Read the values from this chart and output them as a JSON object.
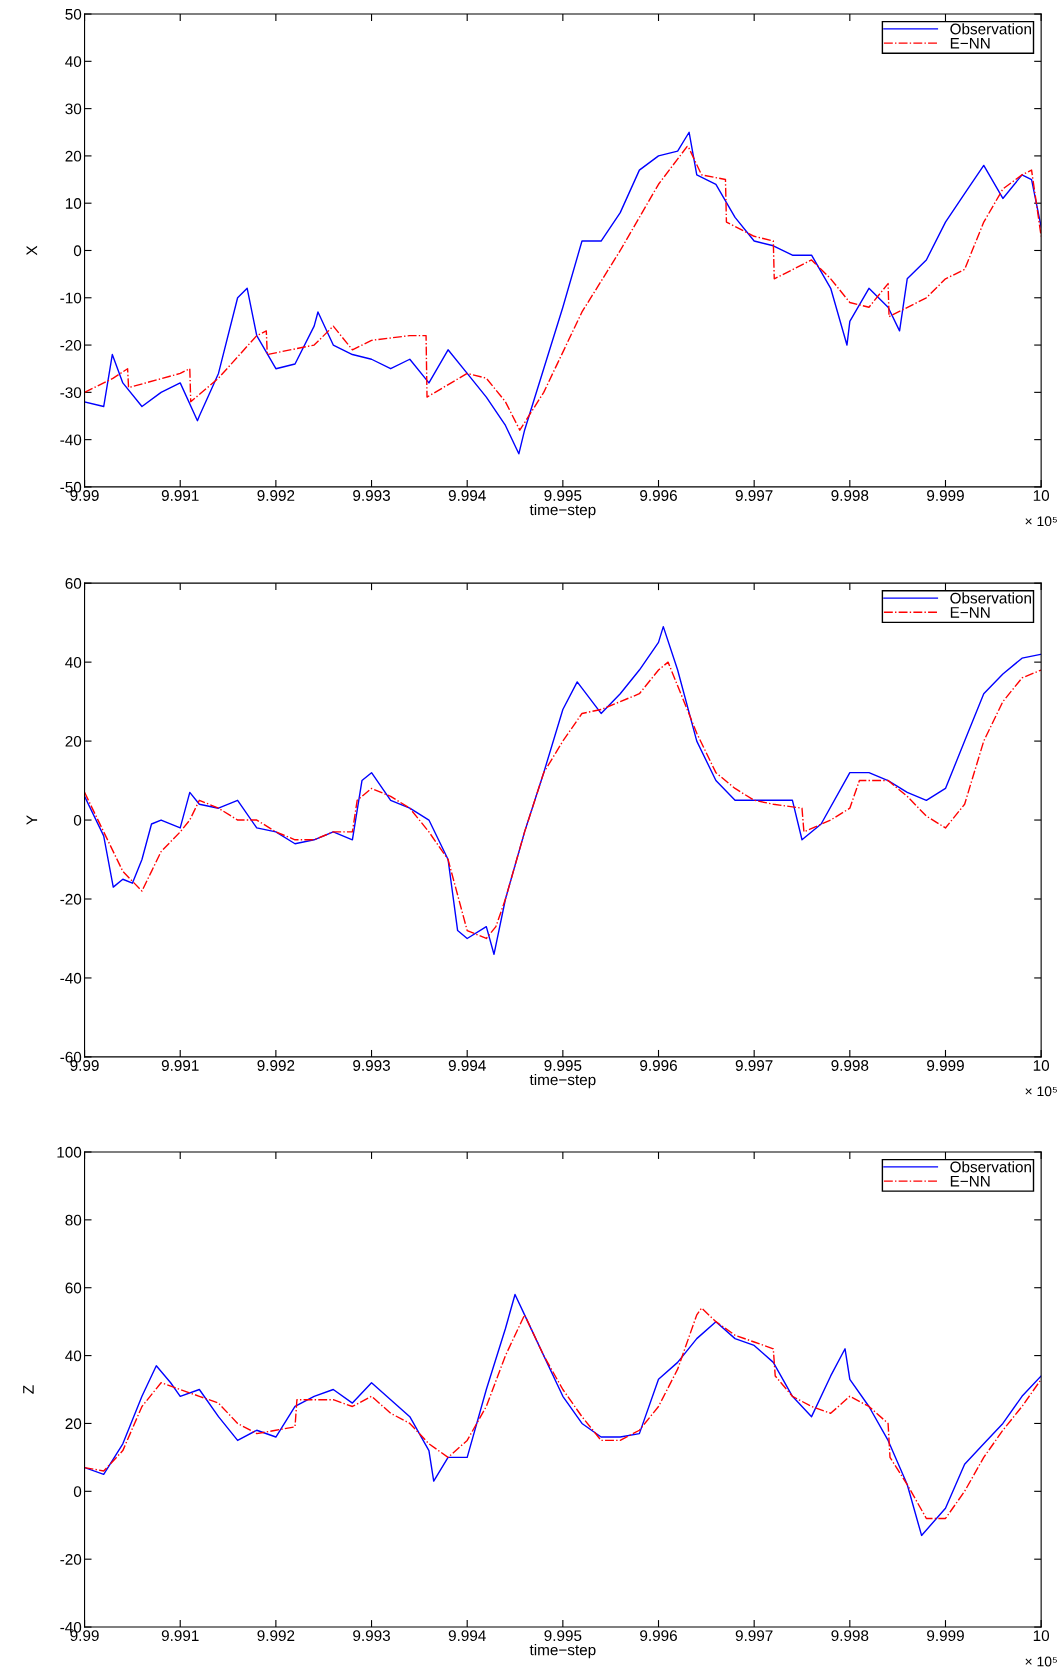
{
  "chart_data": [
    {
      "type": "line",
      "xlabel": "time−step",
      "ylabel": "X",
      "xlim": [
        9.99,
        10
      ],
      "xticks": [
        9.99,
        9.991,
        9.992,
        9.993,
        9.994,
        9.995,
        9.996,
        9.997,
        9.998,
        9.999,
        10
      ],
      "ylim": [
        -50,
        50
      ],
      "yticks": [
        -50,
        -40,
        -30,
        -20,
        -10,
        0,
        10,
        20,
        30,
        40,
        50
      ],
      "grid": false,
      "legend": "top right",
      "annotations": [
        "× 10⁵"
      ],
      "series": [
        {
          "name": "Observation",
          "color": "#0000ff",
          "line_style": "solid",
          "x": [
            9.99,
            9.9902,
            9.99029,
            9.9904,
            9.9906,
            9.9908,
            9.991,
            9.99118,
            9.9912,
            9.9914,
            9.9916,
            9.9917,
            9.9918,
            9.992,
            9.9922,
            9.9924,
            9.99244,
            9.9926,
            9.9928,
            9.993,
            9.9932,
            9.9934,
            9.9936,
            9.9938,
            9.994,
            9.9942,
            9.9944,
            9.99454,
            9.9946,
            9.9948,
            9.995,
            9.9952,
            9.9954,
            9.9956,
            9.9958,
            9.996,
            9.9962,
            9.99632,
            9.9964,
            9.9966,
            9.9968,
            9.997,
            9.9972,
            9.9974,
            9.9976,
            9.9978,
            9.99797,
            9.998,
            9.9982,
            9.9984,
            9.99852,
            9.9986,
            9.9988,
            9.999,
            9.9992,
            9.9994,
            9.9996,
            9.9998,
            9.9999,
            10
          ],
          "values": [
            -32,
            -33,
            -22,
            -28,
            -33,
            -30,
            -28,
            -36,
            -35,
            -26,
            -10,
            -8,
            -18,
            -25,
            -24,
            -16,
            -13,
            -20,
            -22,
            -23,
            -25,
            -23,
            -28,
            -21,
            -26,
            -31,
            -37,
            -43,
            -38,
            -25,
            -12,
            2,
            2,
            8,
            17,
            20,
            21,
            25,
            16,
            14,
            7,
            2,
            1,
            -1,
            -1,
            -8,
            -20,
            -15,
            -8,
            -12,
            -17,
            -6,
            -2,
            6,
            12,
            18,
            11,
            16,
            15,
            5
          ]
        },
        {
          "name": "E−NN",
          "color": "#ff0000",
          "line_style": "dashdot",
          "x": [
            9.99,
            9.9903,
            9.99045,
            9.99046,
            9.991,
            9.9911,
            9.99111,
            9.9914,
            9.9918,
            9.9919,
            9.99191,
            9.9924,
            9.9926,
            9.9928,
            9.993,
            9.9934,
            9.99357,
            9.99358,
            9.994,
            9.9942,
            9.9944,
            9.99455,
            9.9948,
            9.9952,
            9.9956,
            9.9958,
            9.996,
            9.9963,
            9.99631,
            9.99645,
            9.9967,
            9.99671,
            9.997,
            9.9972,
            9.99721,
            9.9976,
            9.9978,
            9.998,
            9.9982,
            9.9984,
            9.99841,
            9.9988,
            9.999,
            9.9992,
            9.9994,
            9.9996,
            9.9998,
            9.9999,
            10
          ],
          "values": [
            -30,
            -27,
            -25,
            -29,
            -26,
            -25,
            -32,
            -27,
            -18,
            -17,
            -22,
            -20,
            -16,
            -21,
            -19,
            -18,
            -18,
            -31,
            -26,
            -27,
            -32,
            -38,
            -30,
            -13,
            0,
            7,
            14,
            22,
            22,
            16,
            15,
            6,
            3,
            2,
            -6,
            -2,
            -6,
            -11,
            -12,
            -7,
            -14,
            -10,
            -6,
            -4,
            6,
            13,
            16,
            17,
            3
          ]
        }
      ]
    },
    {
      "type": "line",
      "xlabel": "time−step",
      "ylabel": "Y",
      "xlim": [
        9.99,
        10
      ],
      "xticks": [
        9.99,
        9.991,
        9.992,
        9.993,
        9.994,
        9.995,
        9.996,
        9.997,
        9.998,
        9.999,
        10
      ],
      "ylim": [
        -60,
        60
      ],
      "yticks": [
        -60,
        -40,
        -20,
        0,
        20,
        40,
        60
      ],
      "grid": false,
      "legend": "top right",
      "annotations": [
        "× 10⁵"
      ],
      "series": [
        {
          "name": "Observation",
          "color": "#0000ff",
          "line_style": "solid",
          "x": [
            9.99,
            9.9902,
            9.9903,
            9.9904,
            9.9905,
            9.9906,
            9.9907,
            9.9908,
            9.991,
            9.9911,
            9.9912,
            9.9914,
            9.9916,
            9.9918,
            9.992,
            9.9922,
            9.9924,
            9.9926,
            9.9928,
            9.9929,
            9.993,
            9.9932,
            9.9934,
            9.9936,
            9.9938,
            9.9939,
            9.994,
            9.9942,
            9.99428,
            9.9944,
            9.9946,
            9.9948,
            9.995,
            9.99515,
            9.9954,
            9.9956,
            9.9958,
            9.996,
            9.99605,
            9.9962,
            9.9964,
            9.9966,
            9.9968,
            9.997,
            9.9972,
            9.9974,
            9.9975,
            9.9977,
            9.998,
            9.9982,
            9.9984,
            9.9986,
            9.9988,
            9.999,
            9.9992,
            9.9994,
            9.9996,
            9.9998,
            10
          ],
          "values": [
            6,
            -4,
            -17,
            -15,
            -16,
            -10,
            -1,
            0,
            -2,
            7,
            4,
            3,
            5,
            -2,
            -3,
            -6,
            -5,
            -3,
            -5,
            10,
            12,
            5,
            3,
            0,
            -10,
            -28,
            -30,
            -27,
            -34,
            -20,
            -3,
            12,
            28,
            35,
            27,
            32,
            38,
            45,
            49,
            38,
            20,
            10,
            5,
            5,
            5,
            5,
            -5,
            -1,
            12,
            12,
            10,
            7,
            5,
            8,
            20,
            32,
            37,
            41,
            42
          ]
        },
        {
          "name": "E−NN",
          "color": "#ff0000",
          "line_style": "dashdot",
          "x": [
            9.99,
            9.9902,
            9.9904,
            9.9906,
            9.9907,
            9.9908,
            9.991,
            9.9911,
            9.9912,
            9.9914,
            9.9916,
            9.9918,
            9.992,
            9.9922,
            9.9924,
            9.9926,
            9.9928,
            9.99285,
            9.993,
            9.9932,
            9.9934,
            9.9936,
            9.9938,
            9.994,
            9.9942,
            9.9943,
            9.9944,
            9.9946,
            9.9948,
            9.995,
            9.9952,
            9.9954,
            9.9956,
            9.9958,
            9.996,
            9.9961,
            9.9964,
            9.9966,
            9.9968,
            9.997,
            9.9972,
            9.9975,
            9.99752,
            9.9978,
            9.998,
            9.9981,
            9.9984,
            9.9986,
            9.9988,
            9.999,
            9.9992,
            9.9994,
            9.9996,
            9.9998,
            10
          ],
          "values": [
            7,
            -3,
            -13,
            -18,
            -13,
            -8,
            -3,
            0,
            5,
            3,
            0,
            0,
            -3,
            -5,
            -5,
            -3,
            -3,
            5,
            8,
            6,
            3,
            -3,
            -10,
            -28,
            -30,
            -27,
            -20,
            -3,
            12,
            20,
            27,
            28,
            30,
            32,
            38,
            40,
            22,
            12,
            8,
            5,
            4,
            3,
            -3,
            0,
            3,
            10,
            10,
            6,
            1,
            -2,
            4,
            20,
            30,
            36,
            38
          ]
        }
      ]
    },
    {
      "type": "line",
      "xlabel": "time−step",
      "ylabel": "Z",
      "xlim": [
        9.99,
        10
      ],
      "xticks": [
        9.99,
        9.991,
        9.992,
        9.993,
        9.994,
        9.995,
        9.996,
        9.997,
        9.998,
        9.999,
        10
      ],
      "ylim": [
        -40,
        100
      ],
      "yticks": [
        -40,
        -20,
        0,
        20,
        40,
        60,
        80,
        100
      ],
      "grid": false,
      "legend": "top right",
      "annotations": [
        "× 10⁵"
      ],
      "series": [
        {
          "name": "Observation",
          "color": "#0000ff",
          "line_style": "solid",
          "x": [
            9.99,
            9.9902,
            9.9904,
            9.9906,
            9.99075,
            9.9909,
            9.991,
            9.9912,
            9.9914,
            9.9916,
            9.9918,
            9.992,
            9.9922,
            9.9924,
            9.9926,
            9.9928,
            9.993,
            9.9932,
            9.9934,
            9.9936,
            9.99365,
            9.9938,
            9.994,
            9.9942,
            9.9944,
            9.9945,
            9.9946,
            9.9948,
            9.995,
            9.9952,
            9.9954,
            9.9956,
            9.9958,
            9.996,
            9.9962,
            9.9964,
            9.9966,
            9.9968,
            9.997,
            9.9972,
            9.9974,
            9.9976,
            9.9978,
            9.99795,
            9.998,
            9.9982,
            9.9984,
            9.9986,
            9.99875,
            9.999,
            9.9992,
            9.9994,
            9.9996,
            9.9998,
            10
          ],
          "values": [
            7,
            5,
            14,
            28,
            37,
            32,
            28,
            30,
            22,
            15,
            18,
            16,
            25,
            28,
            30,
            26,
            32,
            27,
            22,
            12,
            3,
            10,
            10,
            30,
            48,
            58,
            52,
            40,
            28,
            20,
            16,
            16,
            17,
            33,
            38,
            45,
            50,
            45,
            43,
            38,
            28,
            22,
            34,
            42,
            33,
            25,
            15,
            2,
            -13,
            -5,
            8,
            14,
            20,
            28,
            34
          ]
        },
        {
          "name": "E−NN",
          "color": "#ff0000",
          "line_style": "dashdot",
          "x": [
            9.99,
            9.9902,
            9.9904,
            9.9906,
            9.9908,
            9.991,
            9.9912,
            9.9914,
            9.9916,
            9.9918,
            9.992,
            9.9922,
            9.99222,
            9.9926,
            9.9928,
            9.993,
            9.9932,
            9.9934,
            9.9936,
            9.9938,
            9.994,
            9.9942,
            9.9944,
            9.9946,
            9.9948,
            9.995,
            9.9952,
            9.9954,
            9.9956,
            9.9958,
            9.996,
            9.9962,
            9.9964,
            9.99645,
            9.9966,
            9.9968,
            9.997,
            9.9972,
            9.99722,
            9.9974,
            9.9976,
            9.9978,
            9.998,
            9.9982,
            9.9984,
            9.99842,
            9.9986,
            9.9988,
            9.999,
            9.9992,
            9.9994,
            9.9996,
            9.9998,
            10
          ],
          "values": [
            7,
            6,
            12,
            25,
            32,
            30,
            28,
            26,
            20,
            17,
            18,
            19,
            27,
            27,
            25,
            28,
            23,
            20,
            14,
            10,
            15,
            25,
            40,
            52,
            40,
            30,
            22,
            15,
            15,
            18,
            25,
            36,
            52,
            54,
            50,
            46,
            44,
            42,
            34,
            28,
            25,
            23,
            28,
            25,
            20,
            10,
            2,
            -8,
            -8,
            0,
            10,
            18,
            25,
            33
          ]
        }
      ]
    }
  ]
}
